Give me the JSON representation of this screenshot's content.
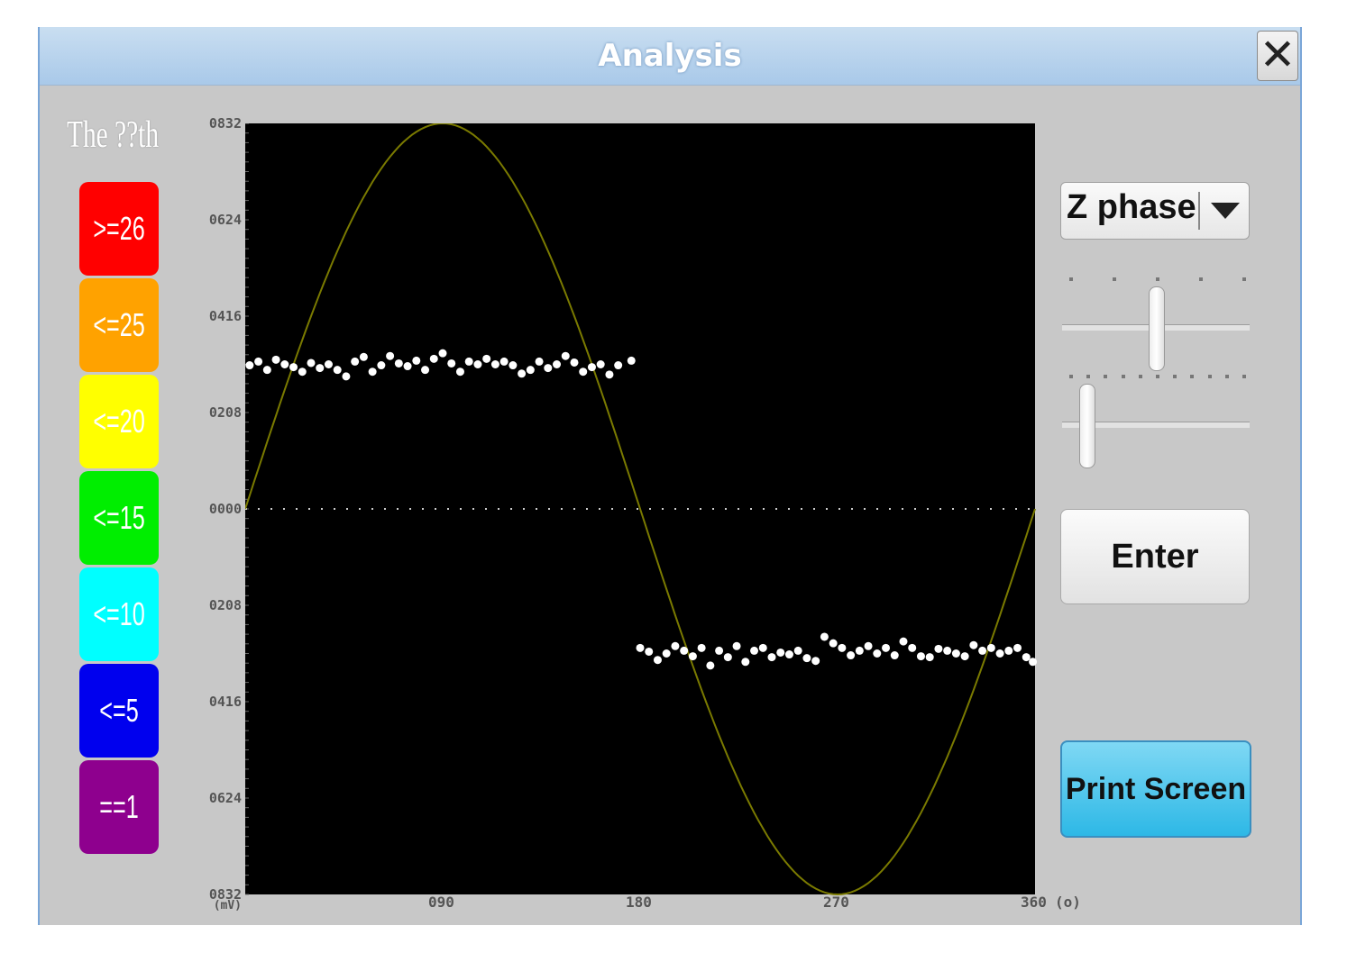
{
  "window": {
    "title": "Analysis",
    "close_icon": "close-icon"
  },
  "legend": {
    "title": "The ??th",
    "items": [
      {
        "label": ">=26",
        "color": "#ff0000"
      },
      {
        "label": "<=25",
        "color": "#ffa200"
      },
      {
        "label": "<=20",
        "color": "#ffff00"
      },
      {
        "label": "<=15",
        "color": "#00ee00"
      },
      {
        "label": "<=10",
        "color": "#00ffff"
      },
      {
        "label": "<=5",
        "color": "#0000ee"
      },
      {
        "label": "==1",
        "color": "#8e008e"
      }
    ]
  },
  "controls": {
    "dropdown_value": "Z phase",
    "slider1_level": 0.5,
    "slider2_level": 0.1,
    "enter_label": "Enter",
    "print_label": "Print Screen"
  },
  "chart_data": {
    "type": "scatter",
    "yticks": [
      "0832",
      "0624",
      "0416",
      "0208",
      "0000",
      "0208",
      "0416",
      "0624",
      "0832"
    ],
    "ylabel": "(mV)",
    "xticks": [
      "090",
      "180",
      "270",
      "360"
    ],
    "xlabel": "(o)",
    "xlim": [
      0,
      360
    ],
    "ylim": [
      -832,
      832
    ],
    "background": "#000000",
    "reference_wave": {
      "type": "sine",
      "amplitude": 832,
      "color": "#7a7a00"
    },
    "zero_line": "dotted",
    "series": [
      {
        "color": "#ffffff",
        "points": [
          [
            2,
            310
          ],
          [
            6,
            318
          ],
          [
            10,
            300
          ],
          [
            14,
            322
          ],
          [
            18,
            312
          ],
          [
            22,
            306
          ],
          [
            26,
            296
          ],
          [
            30,
            315
          ],
          [
            34,
            304
          ],
          [
            38,
            312
          ],
          [
            42,
            300
          ],
          [
            46,
            286
          ],
          [
            50,
            318
          ],
          [
            54,
            328
          ],
          [
            58,
            296
          ],
          [
            62,
            310
          ],
          [
            66,
            330
          ],
          [
            70,
            314
          ],
          [
            74,
            308
          ],
          [
            78,
            320
          ],
          [
            82,
            300
          ],
          [
            86,
            324
          ],
          [
            90,
            336
          ],
          [
            94,
            314
          ],
          [
            98,
            296
          ],
          [
            102,
            318
          ],
          [
            106,
            312
          ],
          [
            110,
            324
          ],
          [
            114,
            312
          ],
          [
            118,
            318
          ],
          [
            122,
            310
          ],
          [
            126,
            292
          ],
          [
            130,
            300
          ],
          [
            134,
            318
          ],
          [
            138,
            304
          ],
          [
            142,
            312
          ],
          [
            146,
            330
          ],
          [
            150,
            316
          ],
          [
            154,
            296
          ],
          [
            158,
            306
          ],
          [
            162,
            312
          ],
          [
            166,
            290
          ],
          [
            170,
            310
          ],
          [
            176,
            320
          ]
        ]
      },
      {
        "color": "#ffffff",
        "points": [
          [
            180,
            -300
          ],
          [
            184,
            -308
          ],
          [
            188,
            -326
          ],
          [
            192,
            -312
          ],
          [
            196,
            -296
          ],
          [
            200,
            -306
          ],
          [
            204,
            -318
          ],
          [
            208,
            -300
          ],
          [
            212,
            -338
          ],
          [
            216,
            -306
          ],
          [
            220,
            -320
          ],
          [
            224,
            -296
          ],
          [
            228,
            -330
          ],
          [
            232,
            -306
          ],
          [
            236,
            -300
          ],
          [
            240,
            -320
          ],
          [
            244,
            -310
          ],
          [
            248,
            -314
          ],
          [
            252,
            -306
          ],
          [
            256,
            -322
          ],
          [
            260,
            -328
          ],
          [
            264,
            -276
          ],
          [
            268,
            -290
          ],
          [
            272,
            -300
          ],
          [
            276,
            -316
          ],
          [
            280,
            -306
          ],
          [
            284,
            -296
          ],
          [
            288,
            -312
          ],
          [
            292,
            -300
          ],
          [
            296,
            -316
          ],
          [
            300,
            -286
          ],
          [
            304,
            -300
          ],
          [
            308,
            -318
          ],
          [
            312,
            -320
          ],
          [
            316,
            -302
          ],
          [
            320,
            -306
          ],
          [
            324,
            -312
          ],
          [
            328,
            -318
          ],
          [
            332,
            -294
          ],
          [
            336,
            -306
          ],
          [
            340,
            -300
          ],
          [
            344,
            -312
          ],
          [
            348,
            -306
          ],
          [
            352,
            -300
          ],
          [
            356,
            -320
          ],
          [
            359,
            -330
          ]
        ]
      }
    ]
  }
}
